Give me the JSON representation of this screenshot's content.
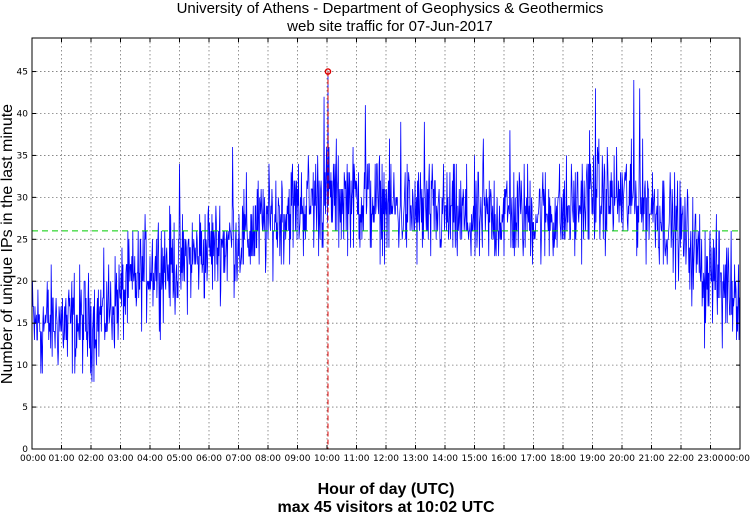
{
  "chart_data": {
    "type": "line",
    "title_lines": [
      "University of Athens - Department of Geophysics & Geothermics",
      "web site traffic for 07-Jun-2017"
    ],
    "xlabel": "Hour of day (UTC)",
    "xlabel_line2": "max 45 visitors at 10:02 UTC",
    "ylabel": "Number of unique IPs in the last minute",
    "xlim": [
      0,
      24
    ],
    "ylim": [
      0,
      49
    ],
    "x_ticks": [
      0,
      1,
      2,
      3,
      4,
      5,
      6,
      7,
      8,
      9,
      10,
      11,
      12,
      13,
      14,
      15,
      16,
      17,
      18,
      19,
      20,
      21,
      22,
      23,
      24
    ],
    "x_tick_labels": [
      "00:00",
      "01:00",
      "02:00",
      "03:00",
      "04:00",
      "05:00",
      "06:00",
      "07:00",
      "08:00",
      "09:00",
      "10:00",
      "11:00",
      "12:00",
      "13:00",
      "14:00",
      "15:00",
      "16:00",
      "17:00",
      "18:00",
      "19:00",
      "20:00",
      "21:00",
      "22:00",
      "23:00",
      "00:00"
    ],
    "y_ticks": [
      0,
      5,
      10,
      15,
      20,
      25,
      30,
      35,
      40,
      45
    ],
    "grid": true,
    "series": [
      {
        "color": "#0000ff",
        "sample_interval_hours": 0.1,
        "mean_profile": [
          {
            "x": 0.0,
            "y": 15
          },
          {
            "x": 1.0,
            "y": 15
          },
          {
            "x": 2.0,
            "y": 15
          },
          {
            "x": 3.0,
            "y": 18
          },
          {
            "x": 4.0,
            "y": 22
          },
          {
            "x": 5.0,
            "y": 22
          },
          {
            "x": 6.0,
            "y": 24
          },
          {
            "x": 7.0,
            "y": 25
          },
          {
            "x": 8.0,
            "y": 27
          },
          {
            "x": 9.0,
            "y": 29
          },
          {
            "x": 10.0,
            "y": 30
          },
          {
            "x": 11.0,
            "y": 30
          },
          {
            "x": 12.0,
            "y": 29
          },
          {
            "x": 13.0,
            "y": 28
          },
          {
            "x": 14.0,
            "y": 28
          },
          {
            "x": 15.0,
            "y": 27
          },
          {
            "x": 16.0,
            "y": 28
          },
          {
            "x": 17.0,
            "y": 28
          },
          {
            "x": 18.0,
            "y": 28
          },
          {
            "x": 19.0,
            "y": 30
          },
          {
            "x": 20.0,
            "y": 30
          },
          {
            "x": 21.0,
            "y": 29
          },
          {
            "x": 22.0,
            "y": 26
          },
          {
            "x": 23.0,
            "y": 21
          },
          {
            "x": 24.0,
            "y": 19
          }
        ],
        "peaks": [
          {
            "x": 0.3,
            "y": 9
          },
          {
            "x": 1.2,
            "y": 11
          },
          {
            "x": 3.2,
            "y": 22
          },
          {
            "x": 5.0,
            "y": 34
          },
          {
            "x": 6.8,
            "y": 36
          },
          {
            "x": 9.9,
            "y": 42
          },
          {
            "x": 10.03,
            "y": 45
          },
          {
            "x": 11.3,
            "y": 41
          },
          {
            "x": 12.5,
            "y": 39
          },
          {
            "x": 13.3,
            "y": 39
          },
          {
            "x": 15.3,
            "y": 37
          },
          {
            "x": 16.2,
            "y": 38
          },
          {
            "x": 18.9,
            "y": 38
          },
          {
            "x": 19.1,
            "y": 43
          },
          {
            "x": 20.4,
            "y": 44
          },
          {
            "x": 20.6,
            "y": 43
          },
          {
            "x": 22.8,
            "y": 12
          },
          {
            "x": 23.4,
            "y": 12
          }
        ],
        "noise_amplitude": 5
      }
    ],
    "mean_line": {
      "y": 26,
      "color": "#00cc00",
      "style": "dashed"
    },
    "max_marker": {
      "x": 10.033,
      "y": 45,
      "color": "#dd0000"
    }
  }
}
